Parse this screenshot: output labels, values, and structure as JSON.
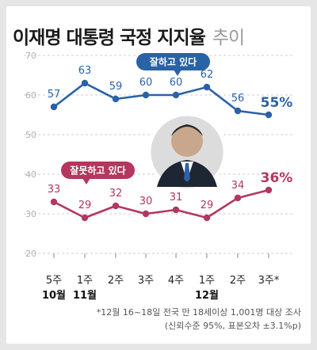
{
  "title": "이재명 대통령 국정 지지율",
  "subtitle": "추이",
  "chart_data": {
    "type": "line",
    "categories": [
      "5주",
      "1주",
      "2주",
      "3주",
      "4주",
      "1주",
      "2주",
      "3주*"
    ],
    "month_labels": [
      {
        "index": 0,
        "label": "10월"
      },
      {
        "index": 1,
        "label": "11월"
      },
      {
        "index": 5,
        "label": "12월"
      }
    ],
    "ylim": [
      20,
      70
    ],
    "yticks": [
      20,
      30,
      40,
      50,
      60,
      70
    ],
    "grid": true,
    "series": [
      {
        "name": "잘하고 있다",
        "color": "#2a62a8",
        "values": [
          57,
          63,
          59,
          60,
          60,
          62,
          56,
          55
        ],
        "last_label": "55%"
      },
      {
        "name": "잘못하고 있다",
        "color": "#b3375e",
        "values": [
          33,
          29,
          32,
          30,
          31,
          29,
          34,
          36
        ],
        "last_label": "36%"
      }
    ]
  },
  "footnote_1": "*12월 16~18일 전국 만 18세이상 1,001명 대상 조사",
  "footnote_2": "(신뢰수준 95%, 표본오차 ±3.1%p)"
}
